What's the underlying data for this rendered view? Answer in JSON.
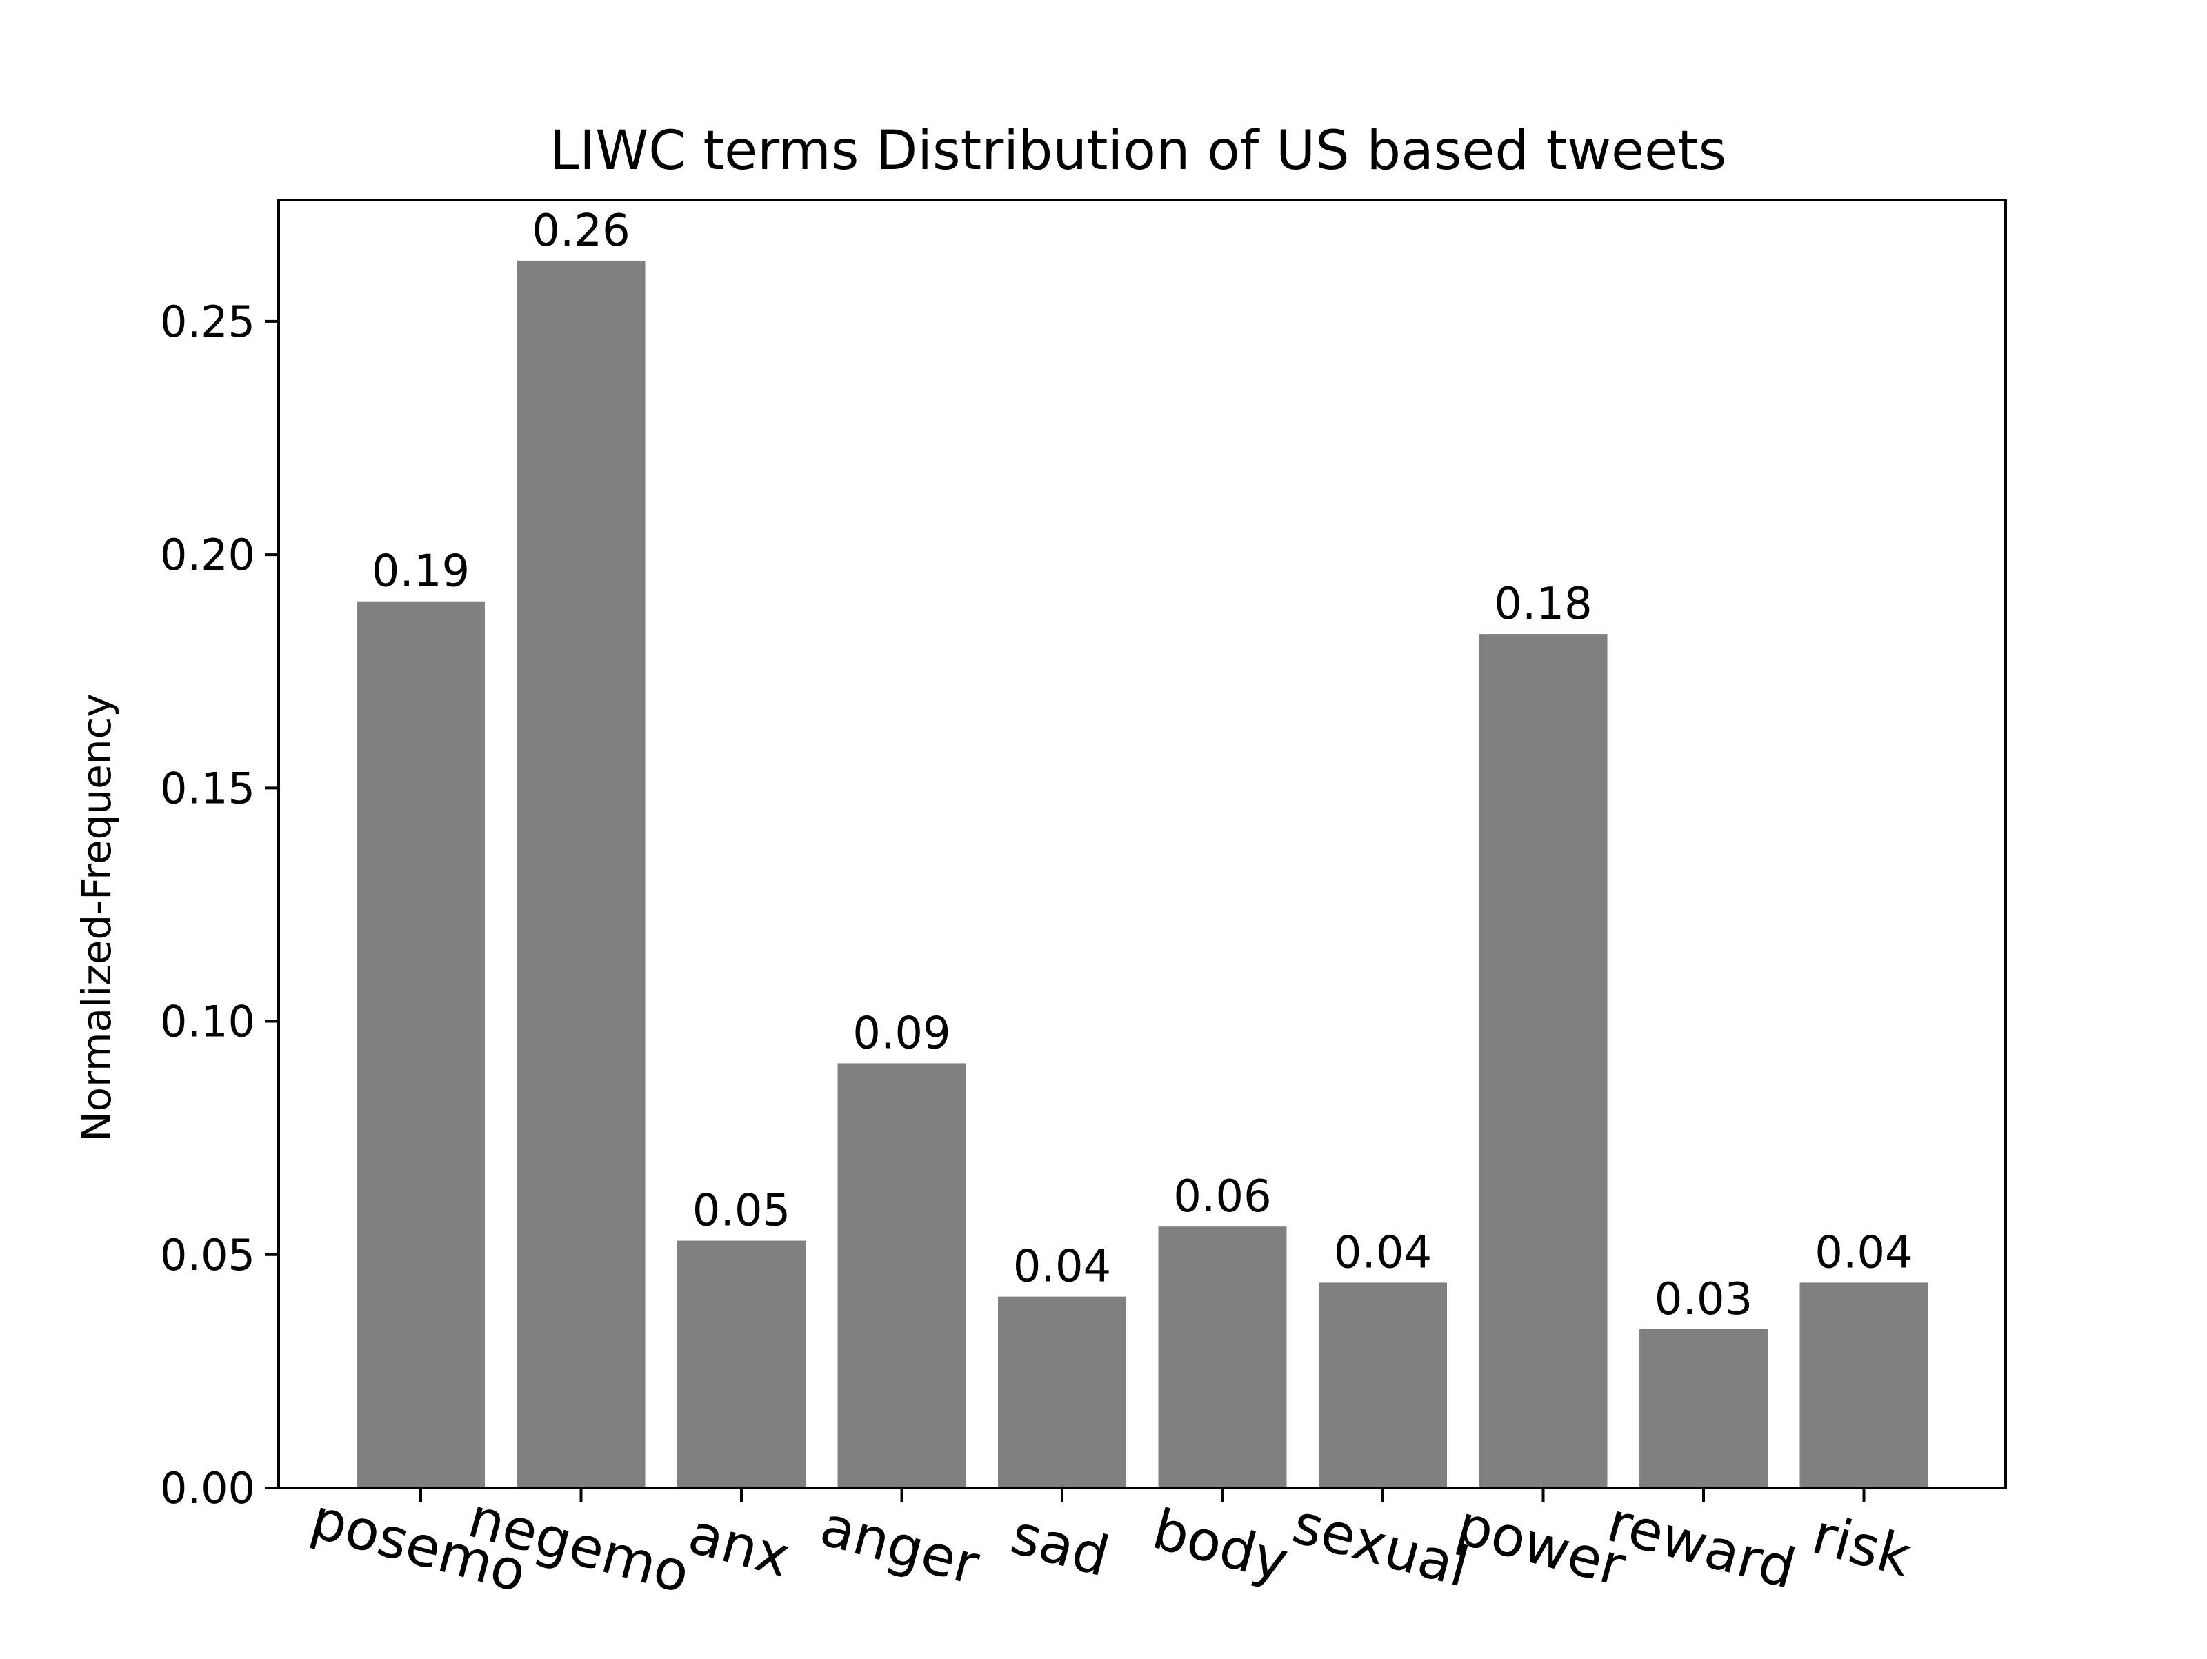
{
  "chart_data": {
    "type": "bar",
    "title": "LIWC terms Distribution of US based tweets",
    "xlabel": "",
    "ylabel": "Normalized-Frequency",
    "categories": [
      "posemo",
      "negemo",
      "anx",
      "anger",
      "sad",
      "body",
      "sexual",
      "power",
      "reward",
      "risk"
    ],
    "values": [
      0.19,
      0.263,
      0.053,
      0.091,
      0.041,
      0.056,
      0.044,
      0.183,
      0.034,
      0.044
    ],
    "value_labels": [
      "0.19",
      "0.26",
      "0.05",
      "0.09",
      "0.04",
      "0.06",
      "0.04",
      "0.18",
      "0.03",
      "0.04"
    ],
    "ylim": [
      0,
      0.276
    ],
    "yticks": [
      0.0,
      0.05,
      0.1,
      0.15,
      0.2,
      0.25
    ],
    "ytick_labels": [
      "0.00",
      "0.05",
      "0.10",
      "0.15",
      "0.20",
      "0.25"
    ],
    "bar_color": "#808080",
    "grid": false,
    "legend": "none"
  }
}
